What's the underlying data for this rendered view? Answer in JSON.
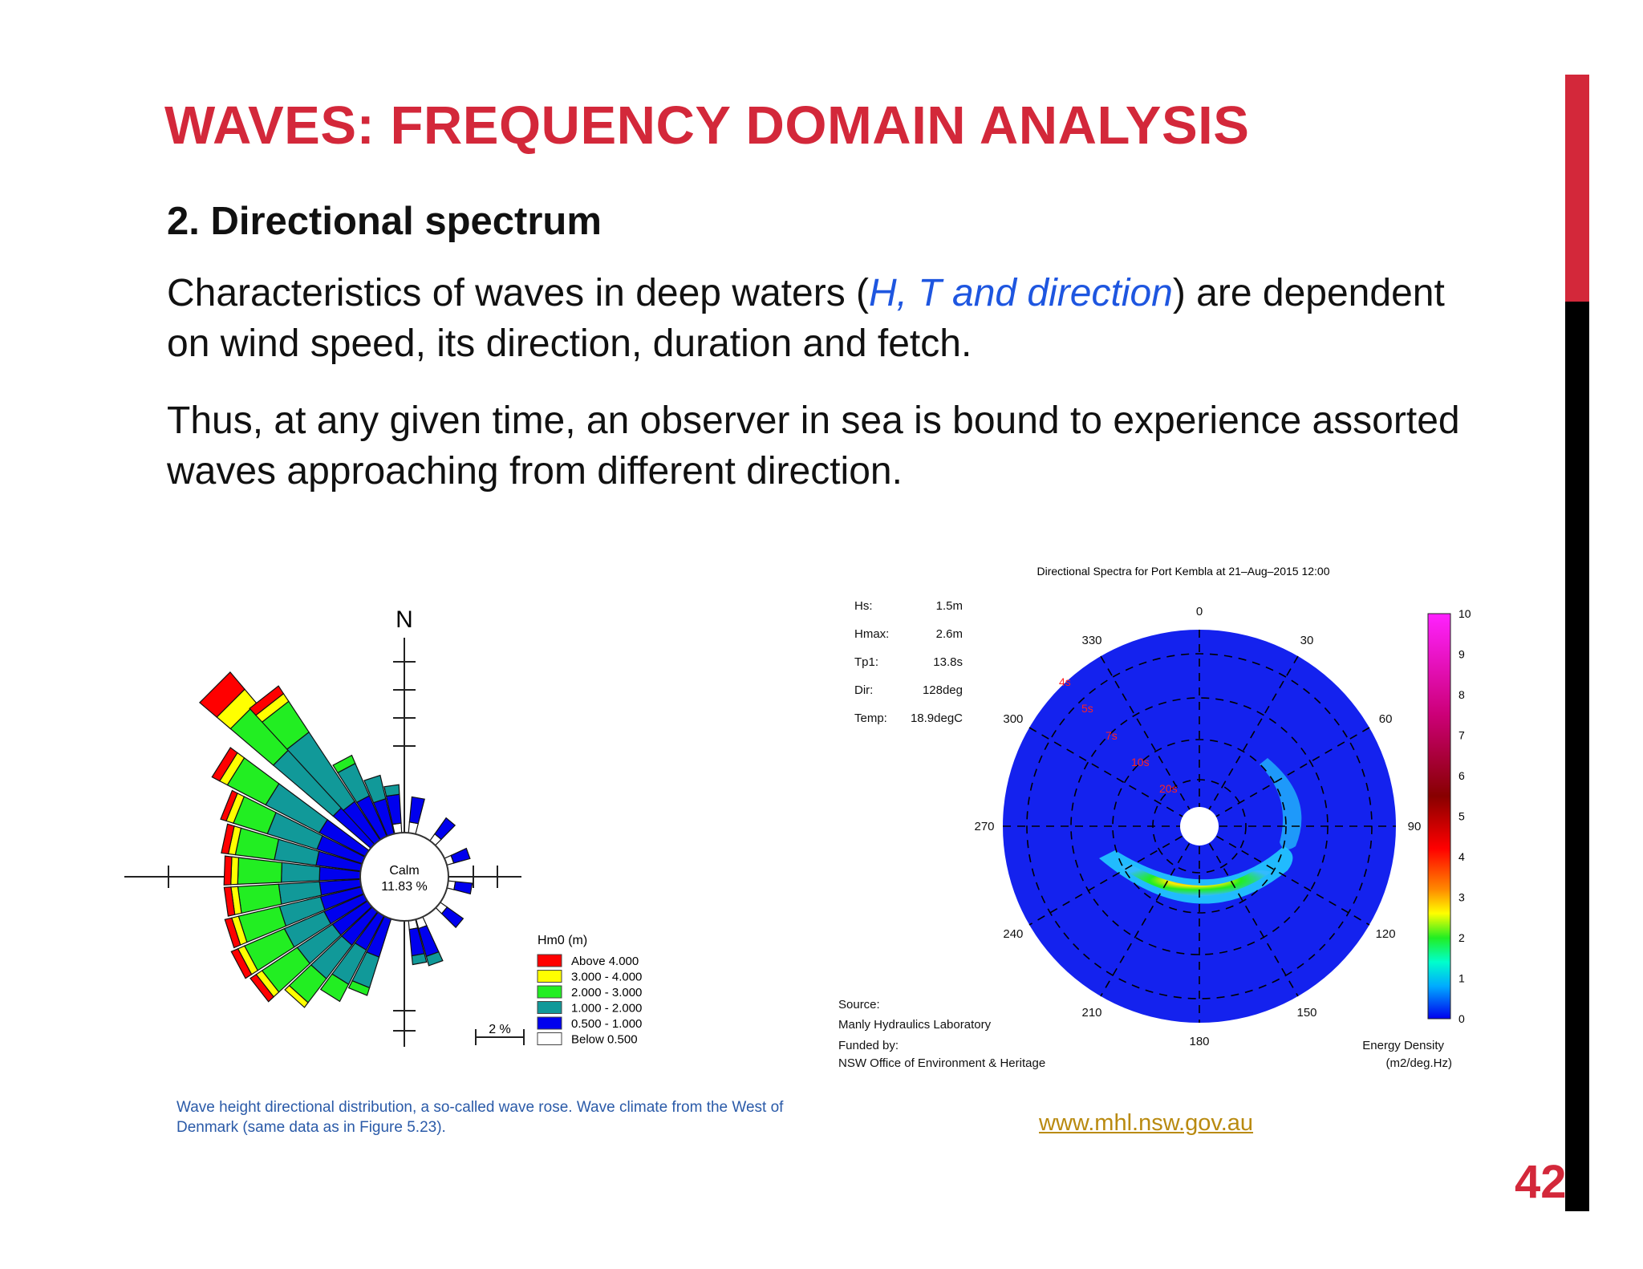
{
  "slide": {
    "title": "WAVES: FREQUENCY DOMAIN ANALYSIS",
    "subtitle": "2. Directional spectrum",
    "para1_before": "Characteristics of waves in deep waters (",
    "para1_highlight": "H, T and direction",
    "para1_after": ") are dependent on wind speed, its direction, duration and fetch.",
    "para2": "Thus, at any given time, an observer in sea is bound to experience assorted waves approaching from different direction.",
    "page_number": "42",
    "accent_color": "#d3283a",
    "highlight_color": "#1e56e0"
  },
  "wave_rose": {
    "north_label": "N",
    "calm_label": "Calm",
    "calm_value": "11.83 %",
    "scale_label": "2 %",
    "legend_title": "Hm0 (m)",
    "legend": [
      {
        "label": "Above  4.000",
        "color": "#ff0000"
      },
      {
        "label": "3.000 - 4.000",
        "color": "#ffff00"
      },
      {
        "label": "2.000 - 3.000",
        "color": "#22ee22"
      },
      {
        "label": "1.000 - 2.000",
        "color": "#119999"
      },
      {
        "label": "0.500 - 1.000",
        "color": "#0000ee"
      },
      {
        "label": "Below  0.500",
        "color": "#ffffff"
      }
    ],
    "caption": "Wave height directional distribution, a so-called wave rose. Wave climate from the West of Denmark (same data as in Figure 5.23)."
  },
  "spectrum": {
    "title": "Directional Spectra for Port Kembla at 21–Aug–2015 12:00",
    "stats": [
      {
        "label": "Hs:",
        "value": "1.5m"
      },
      {
        "label": "Hmax:",
        "value": "2.6m"
      },
      {
        "label": "Tp1:",
        "value": "13.8s"
      },
      {
        "label": "Dir:",
        "value": "128deg"
      },
      {
        "label": "Temp:",
        "value": "18.9degC"
      }
    ],
    "angle_labels": [
      "0",
      "30",
      "60",
      "90",
      "120",
      "150",
      "180",
      "210",
      "240",
      "270",
      "300",
      "330"
    ],
    "period_labels": [
      "4s",
      "5s",
      "7s",
      "10s",
      "20s"
    ],
    "colorbar_ticks": [
      "0",
      "1",
      "2",
      "3",
      "4",
      "5",
      "6",
      "7",
      "8",
      "9",
      "10"
    ],
    "colorbar_title": "Energy Density",
    "colorbar_units": "(m2/deg.Hz)",
    "source_label": "Source:",
    "source_value": "Manly Hydraulics Laboratory",
    "funded_label": "Funded by:",
    "funded_value": "NSW Office of Environment & Heritage",
    "link": "www.mhl.nsw.gov.au"
  }
}
